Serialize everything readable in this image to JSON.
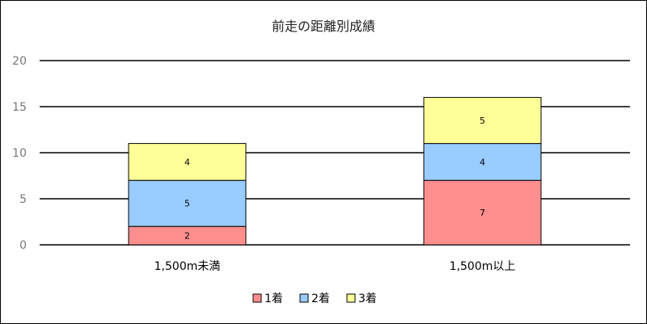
{
  "chart_data": {
    "type": "bar",
    "stacked": true,
    "title": "前走の距離別成績",
    "categories": [
      "1,500m未満",
      "1,500m以上"
    ],
    "series": [
      {
        "name": "1着",
        "values": [
          2,
          7
        ],
        "color": "#ff8f8f"
      },
      {
        "name": "2着",
        "values": [
          5,
          4
        ],
        "color": "#99ccff"
      },
      {
        "name": "3着",
        "values": [
          4,
          5
        ],
        "color": "#ffff99"
      }
    ],
    "ylim": [
      0,
      20
    ],
    "yticks": [
      0,
      5,
      10,
      15,
      20
    ],
    "grid": true,
    "legend": "bottom"
  }
}
